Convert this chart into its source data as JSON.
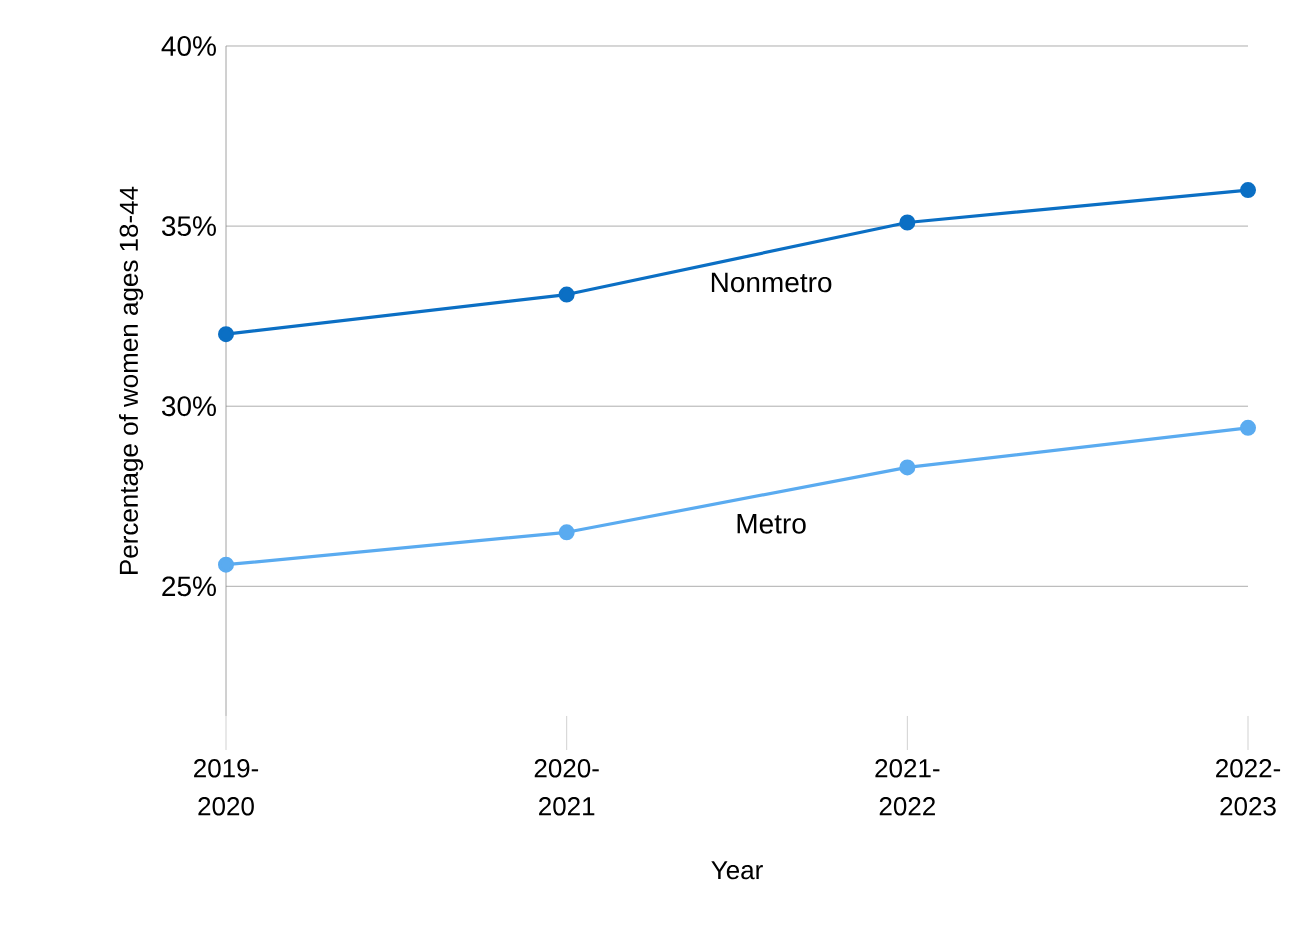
{
  "chart_data": {
    "type": "line",
    "xlabel": "Year",
    "ylabel": "Percentage of women ages 18-44",
    "categories": [
      "2019-2020",
      "2020-2021",
      "2021-2022",
      "2022-2023"
    ],
    "series": [
      {
        "name": "Nonmetro",
        "color": "#0b6fc4",
        "values": [
          32.0,
          33.1,
          35.1,
          36.0
        ]
      },
      {
        "name": "Metro",
        "color": "#5aabf0",
        "values": [
          25.6,
          26.5,
          28.3,
          29.4
        ]
      }
    ],
    "ylim": [
      21.4,
      40
    ],
    "yticks": [
      {
        "value": 25,
        "label": "25%"
      },
      {
        "value": 30,
        "label": "30%"
      },
      {
        "value": 35,
        "label": "35%"
      },
      {
        "value": 40,
        "label": "40%"
      }
    ],
    "grid": "y",
    "marker": "circle",
    "line_style": "solid"
  }
}
